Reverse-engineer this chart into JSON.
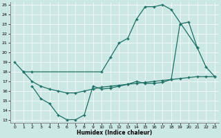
{
  "xlabel": "Humidex (Indice chaleur)",
  "bg_color": "#cce8e4",
  "line_color": "#1a6e62",
  "xlim": [
    -0.5,
    23.5
  ],
  "ylim": [
    12.7,
    25.3
  ],
  "xticks": [
    0,
    1,
    2,
    3,
    4,
    5,
    6,
    7,
    8,
    9,
    10,
    11,
    12,
    13,
    14,
    15,
    16,
    17,
    18,
    19,
    20,
    21,
    22,
    23
  ],
  "yticks": [
    13,
    14,
    15,
    16,
    17,
    18,
    19,
    20,
    21,
    22,
    23,
    24,
    25
  ],
  "line1_x": [
    0,
    1,
    2,
    10,
    11,
    12,
    13,
    14,
    15,
    16,
    17,
    18,
    21,
    22,
    23
  ],
  "line1_y": [
    19,
    18,
    18,
    18,
    19.5,
    21,
    21.5,
    23.5,
    24.8,
    24.8,
    25,
    24.5,
    20.5,
    18.5,
    17.5
  ],
  "line2_x": [
    2,
    3,
    4,
    5,
    6,
    7,
    8,
    9,
    10,
    11,
    12,
    13,
    14,
    15,
    16,
    17,
    18,
    19,
    20,
    21
  ],
  "line2_y": [
    16.5,
    15.2,
    14.7,
    13.5,
    13.0,
    13.0,
    13.5,
    16.5,
    16.2,
    16.3,
    16.5,
    16.7,
    17.0,
    16.8,
    16.8,
    16.9,
    17.2,
    23.0,
    23.2,
    20.5
  ],
  "line3_x": [
    1,
    2,
    3,
    4,
    5,
    6,
    7,
    8,
    9,
    10,
    11,
    12,
    13,
    14,
    15,
    16,
    17,
    18,
    19,
    20,
    21,
    22,
    23
  ],
  "line3_y": [
    18.0,
    17.0,
    16.5,
    16.2,
    16.0,
    15.8,
    15.8,
    16.0,
    16.2,
    16.4,
    16.5,
    16.6,
    16.7,
    16.8,
    16.9,
    17.0,
    17.1,
    17.2,
    17.3,
    17.4,
    17.5,
    17.5,
    17.5
  ]
}
